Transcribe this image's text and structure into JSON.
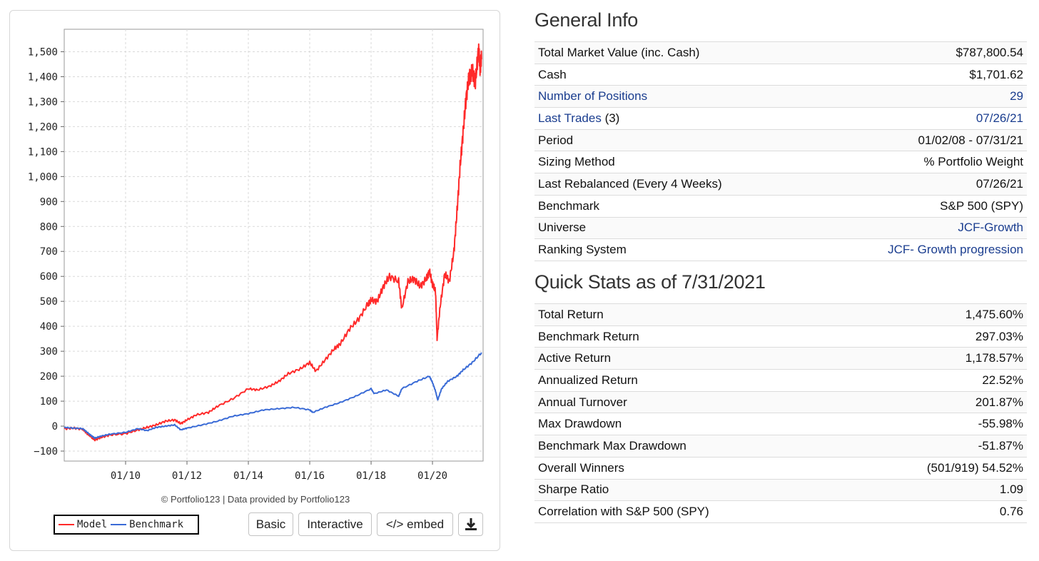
{
  "chart": {
    "credit": "© Portfolio123 | Data provided by Portfolio123",
    "legend": {
      "model_label": "Model",
      "benchmark_label": "Benchmark"
    },
    "buttons": {
      "basic": "Basic",
      "interactive": "Interactive",
      "embed": "</> embed",
      "download_icon": "download-icon"
    }
  },
  "chart_data": {
    "type": "line",
    "y_ticks": [
      -100,
      0,
      100,
      200,
      300,
      400,
      500,
      600,
      700,
      800,
      900,
      1000,
      1100,
      1200,
      1300,
      1400,
      1500
    ],
    "y_tick_labels": [
      "−100",
      "0",
      "100",
      "200",
      "300",
      "400",
      "500",
      "600",
      "700",
      "800",
      "900",
      "1,000",
      "1,100",
      "1,200",
      "1,300",
      "1,400",
      "1,500"
    ],
    "ylim": [
      -140,
      1590
    ],
    "xlim": [
      2008.0,
      2021.65
    ],
    "x_ticks": [
      2010,
      2012,
      2014,
      2016,
      2018,
      2020
    ],
    "x_tick_labels": [
      "01/10",
      "01/12",
      "01/14",
      "01/16",
      "01/18",
      "01/20"
    ],
    "grid": true,
    "legend_position": "bottom-left",
    "series": [
      {
        "name": "Model",
        "color": "#ff2a2a",
        "x": [
          2008.0,
          2008.3,
          2008.6,
          2008.75,
          2008.9,
          2009.0,
          2009.2,
          2009.5,
          2010.0,
          2010.4,
          2010.7,
          2011.0,
          2011.3,
          2011.6,
          2011.8,
          2012.0,
          2012.3,
          2012.7,
          2013.0,
          2013.5,
          2014.0,
          2014.3,
          2014.7,
          2015.0,
          2015.3,
          2015.7,
          2016.0,
          2016.2,
          2016.5,
          2016.8,
          2017.0,
          2017.3,
          2017.6,
          2017.9,
          2018.0,
          2018.2,
          2018.4,
          2018.6,
          2018.9,
          2019.0,
          2019.2,
          2019.4,
          2019.6,
          2019.8,
          2019.9,
          2020.0,
          2020.1,
          2020.15,
          2020.25,
          2020.4,
          2020.55,
          2020.7,
          2020.8,
          2020.9,
          2021.0,
          2021.1,
          2021.2,
          2021.3,
          2021.4,
          2021.5,
          2021.55,
          2021.6
        ],
        "y": [
          -10,
          -8,
          -12,
          -30,
          -45,
          -55,
          -45,
          -35,
          -30,
          -15,
          -5,
          5,
          20,
          25,
          10,
          25,
          45,
          55,
          80,
          110,
          150,
          145,
          160,
          180,
          210,
          230,
          255,
          220,
          265,
          310,
          330,
          390,
          430,
          490,
          505,
          500,
          560,
          600,
          580,
          470,
          580,
          590,
          560,
          590,
          620,
          570,
          540,
          350,
          480,
          610,
          580,
          700,
          860,
          1040,
          1180,
          1320,
          1400,
          1420,
          1380,
          1510,
          1440,
          1470
        ]
      },
      {
        "name": "Benchmark",
        "color": "#3a6bd6",
        "x": [
          2008.0,
          2008.3,
          2008.6,
          2008.75,
          2008.9,
          2009.0,
          2009.2,
          2009.5,
          2010.0,
          2010.4,
          2010.7,
          2011.0,
          2011.3,
          2011.6,
          2011.8,
          2012.0,
          2012.5,
          2013.0,
          2013.5,
          2014.0,
          2014.5,
          2015.0,
          2015.5,
          2016.0,
          2016.1,
          2016.5,
          2017.0,
          2017.5,
          2018.0,
          2018.1,
          2018.5,
          2018.9,
          2019.0,
          2019.5,
          2019.9,
          2020.0,
          2020.1,
          2020.17,
          2020.3,
          2020.5,
          2020.8,
          2021.0,
          2021.3,
          2021.6
        ],
        "y": [
          -5,
          -8,
          -10,
          -25,
          -40,
          -48,
          -40,
          -32,
          -25,
          -10,
          -18,
          -5,
          0,
          5,
          -15,
          -8,
          5,
          20,
          40,
          50,
          65,
          70,
          75,
          65,
          55,
          75,
          95,
          120,
          150,
          130,
          145,
          120,
          150,
          180,
          200,
          175,
          140,
          105,
          150,
          180,
          200,
          225,
          255,
          295
        ]
      }
    ]
  },
  "general_info": {
    "title": "General Info",
    "rows": [
      {
        "label": "Total Market Value (inc. Cash)",
        "value": "$787,800.54"
      },
      {
        "label": "Cash",
        "value": "$1,701.62"
      },
      {
        "label": "Number of Positions",
        "value": "29"
      },
      {
        "label": "Last Trades",
        "label_suffix": "(3)",
        "value": "07/26/21"
      },
      {
        "label": "Period",
        "value": "01/02/08 - 07/31/21"
      },
      {
        "label": "Sizing Method",
        "value": "% Portfolio Weight"
      },
      {
        "label": "Last Rebalanced (Every 4 Weeks)",
        "value": "07/26/21"
      },
      {
        "label": "Benchmark",
        "value": "S&P 500 (SPY)"
      },
      {
        "label": "Universe",
        "value": "JCF-Growth"
      },
      {
        "label": "Ranking System",
        "value": "JCF- Growth progression"
      }
    ]
  },
  "quick_stats": {
    "title": "Quick Stats as of 7/31/2021",
    "rows": [
      {
        "label": "Total Return",
        "value": "1,475.60%"
      },
      {
        "label": "Benchmark Return",
        "value": "297.03%"
      },
      {
        "label": "Active Return",
        "value": "1,178.57%"
      },
      {
        "label": "Annualized Return",
        "value": "22.52%"
      },
      {
        "label": "Annual Turnover",
        "value": "201.87%"
      },
      {
        "label": "Max Drawdown",
        "value": "-55.98%"
      },
      {
        "label": "Benchmark Max Drawdown",
        "value": "-51.87%"
      },
      {
        "label": "Overall Winners",
        "value": "(501/919) 54.52%"
      },
      {
        "label": "Sharpe Ratio",
        "value": "1.09"
      },
      {
        "label": "Correlation with S&P 500 (SPY)",
        "value": "0.76"
      }
    ]
  },
  "colors": {
    "link": "#1a3d8f",
    "negative": "#c8102e",
    "model": "#ff2a2a",
    "benchmark": "#3a6bd6"
  }
}
